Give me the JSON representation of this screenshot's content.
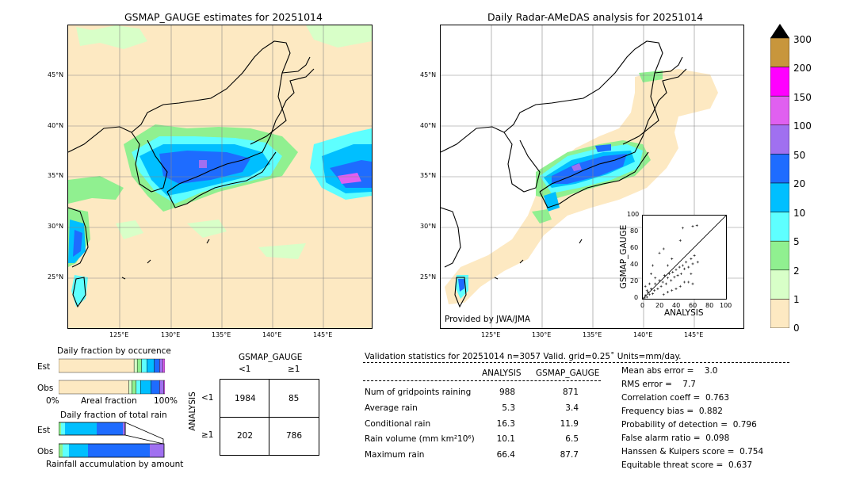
{
  "left_map": {
    "title": "GSMAP_GAUGE estimates for 20251014",
    "lat_labels": [
      "45°N",
      "40°N",
      "35°N",
      "30°N",
      "25°N"
    ],
    "lon_labels": [
      "125°E",
      "130°E",
      "135°E",
      "140°E",
      "145°E"
    ]
  },
  "right_map": {
    "title": "Daily Radar-AMeDAS analysis for 20251014",
    "lat_labels": [
      "45°N",
      "40°N",
      "35°N",
      "30°N",
      "25°N"
    ],
    "lon_labels": [
      "125°E",
      "130°E",
      "135°E",
      "140°E",
      "145°E"
    ],
    "credit": "Provided by JWA/JMA"
  },
  "colorbar": {
    "ticks": [
      "300",
      "200",
      "150",
      "100",
      "50",
      "20",
      "10",
      "5",
      "2",
      "1",
      "0"
    ],
    "colors": [
      "#c8963c",
      "#ff00ff",
      "#e060f0",
      "#a070f0",
      "#1e6cff",
      "#00bfff",
      "#5effff",
      "#90f090",
      "#d8ffc8",
      "#fde9c2"
    ]
  },
  "scatter": {
    "xlabel": "ANALYSIS",
    "ylabel": "GSMAP_GAUGE",
    "ticks": [
      "0",
      "20",
      "40",
      "60",
      "80",
      "100"
    ]
  },
  "occurrence": {
    "title": "Daily fraction by occurence",
    "rows": [
      "Est",
      "Obs"
    ],
    "axis_left": "0%",
    "axis_mid": "Areal fraction",
    "axis_right": "100%"
  },
  "total_rain": {
    "title": "Daily fraction of total rain",
    "rows": [
      "Est",
      "Obs"
    ],
    "caption": "Rainfall accumulation by amount"
  },
  "contingency": {
    "header": "GSMAP_GAUGE",
    "col_labels": [
      "<1",
      "≥1"
    ],
    "row_axis": "ANALYSIS",
    "row_labels": [
      "<1",
      "≥1"
    ],
    "cells": [
      [
        "1984",
        "85"
      ],
      [
        "202",
        "786"
      ]
    ]
  },
  "validation": {
    "header": "Validation statistics for 20251014  n=3057 Valid. grid=0.25˚ Units=mm/day.",
    "col_analysis": "ANALYSIS",
    "col_gsmap": "GSMAP_GAUGE",
    "rows": [
      {
        "label": "Num of gridpoints raining",
        "a": "988",
        "g": "871"
      },
      {
        "label": "Average rain",
        "a": "5.3",
        "g": "3.4"
      },
      {
        "label": "Conditional rain",
        "a": "16.3",
        "g": "11.9"
      },
      {
        "label": "Rain volume (mm km²10⁶)",
        "a": "10.1",
        "g": "6.5"
      },
      {
        "label": "Maximum rain",
        "a": "66.4",
        "g": "87.7"
      }
    ],
    "scores": [
      "Mean abs error =    3.0",
      "RMS error =    7.7",
      "Correlation coeff =  0.763",
      "Frequency bias =  0.882",
      "Probability of detection =  0.796",
      "False alarm ratio =  0.098",
      "Hanssen & Kuipers score =  0.754",
      "Equitable threat score =  0.637"
    ]
  },
  "chart_data": [
    {
      "type": "scatter",
      "xlabel": "ANALYSIS",
      "ylabel": "GSMAP_GAUGE",
      "xlim": [
        0,
        100
      ],
      "ylim": [
        0,
        100
      ],
      "x_ticks": [
        0,
        20,
        40,
        60,
        80,
        100
      ],
      "y_ticks": [
        0,
        20,
        40,
        60,
        80,
        100
      ],
      "diagonal_line": true,
      "points": [
        [
          2,
          1
        ],
        [
          3,
          4
        ],
        [
          5,
          2
        ],
        [
          6,
          8
        ],
        [
          8,
          5
        ],
        [
          10,
          12
        ],
        [
          12,
          6
        ],
        [
          14,
          10
        ],
        [
          15,
          18
        ],
        [
          18,
          12
        ],
        [
          20,
          22
        ],
        [
          22,
          15
        ],
        [
          24,
          20
        ],
        [
          26,
          28
        ],
        [
          28,
          18
        ],
        [
          30,
          25
        ],
        [
          32,
          30
        ],
        [
          34,
          22
        ],
        [
          36,
          32
        ],
        [
          38,
          26
        ],
        [
          40,
          35
        ],
        [
          42,
          28
        ],
        [
          44,
          38
        ],
        [
          46,
          30
        ],
        [
          48,
          40
        ],
        [
          50,
          36
        ],
        [
          52,
          44
        ],
        [
          55,
          38
        ],
        [
          58,
          48
        ],
        [
          60,
          42
        ],
        [
          62,
          52
        ],
        [
          66,
          44
        ],
        [
          20,
          55
        ],
        [
          25,
          60
        ],
        [
          30,
          40
        ],
        [
          35,
          48
        ],
        [
          45,
          70
        ],
        [
          48,
          85
        ],
        [
          60,
          87
        ],
        [
          65,
          88
        ],
        [
          55,
          20
        ],
        [
          60,
          18
        ],
        [
          40,
          12
        ],
        [
          45,
          15
        ],
        [
          30,
          8
        ],
        [
          10,
          30
        ],
        [
          12,
          40
        ],
        [
          15,
          25
        ],
        [
          8,
          18
        ],
        [
          5,
          10
        ],
        [
          3,
          15
        ],
        [
          25,
          5
        ],
        [
          35,
          10
        ],
        [
          50,
          20
        ],
        [
          58,
          30
        ]
      ]
    },
    {
      "type": "table",
      "title": "Validation statistics for 20251014",
      "columns": [
        "ANALYSIS",
        "GSMAP_GAUGE"
      ],
      "rows": [
        "Num of gridpoints raining",
        "Average rain",
        "Conditional rain",
        "Rain volume (mm km²10⁶)",
        "Maximum rain"
      ],
      "values": [
        [
          988,
          871
        ],
        [
          5.3,
          3.4
        ],
        [
          16.3,
          11.9
        ],
        [
          10.1,
          6.5
        ],
        [
          66.4,
          87.7
        ]
      ]
    },
    {
      "type": "bar",
      "title": "Daily fraction by occurence",
      "categories": [
        "Est",
        "Obs"
      ],
      "series": [
        {
          "values": [
            0.71,
            0.66
          ]
        },
        {
          "values": [
            0.03,
            0.03
          ]
        },
        {
          "values": [
            0.04,
            0.04
          ]
        },
        {
          "values": [
            0.05,
            0.04
          ]
        },
        {
          "values": [
            0.07,
            0.1
          ]
        },
        {
          "values": [
            0.05,
            0.08
          ]
        },
        {
          "values": [
            0.03,
            0.04
          ]
        },
        {
          "values": [
            0.02,
            0.01
          ]
        }
      ]
    }
  ]
}
